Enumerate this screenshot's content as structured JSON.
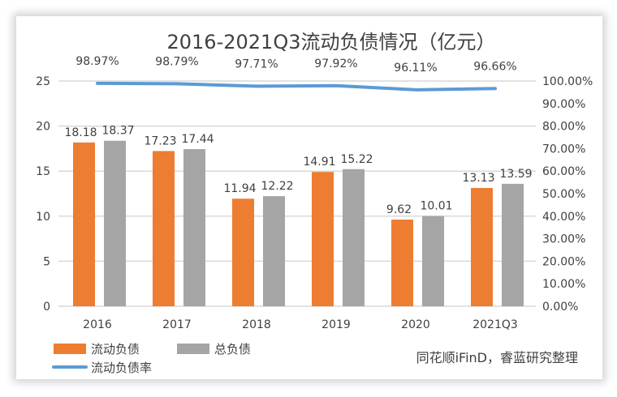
{
  "chart_data": {
    "type": "bar",
    "title": "2016-2021Q3流动负债情况（亿元）",
    "categories": [
      "2016",
      "2017",
      "2018",
      "2019",
      "2020",
      "2021Q3"
    ],
    "series": [
      {
        "name": "流动负债",
        "type": "bar",
        "axis": "left",
        "color": "#ed7d31",
        "values": [
          18.18,
          17.23,
          11.94,
          14.91,
          9.62,
          13.13
        ],
        "labels": [
          "18.18",
          "17.23",
          "11.94",
          "14.91",
          "9.62",
          "13.13"
        ]
      },
      {
        "name": "总负债",
        "type": "bar",
        "axis": "left",
        "color": "#a5a5a5",
        "values": [
          18.37,
          17.44,
          12.22,
          15.22,
          10.01,
          13.59
        ],
        "labels": [
          "18.37",
          "17.44",
          "12.22",
          "15.22",
          "10.01",
          "13.59"
        ]
      },
      {
        "name": "流动负债率",
        "type": "line",
        "axis": "right",
        "color": "#5b9bd5",
        "values": [
          98.97,
          98.79,
          97.71,
          97.92,
          96.11,
          96.66
        ],
        "labels": [
          "98.97%",
          "98.79%",
          "97.71%",
          "97.92%",
          "96.11%",
          "96.66%"
        ]
      }
    ],
    "ylim": [
      0,
      25
    ],
    "y_ticks": [
      "0",
      "5",
      "10",
      "15",
      "20",
      "25"
    ],
    "y2lim": [
      0,
      100
    ],
    "y2_ticks": [
      "0.00%",
      "10.00%",
      "20.00%",
      "30.00%",
      "40.00%",
      "50.00%",
      "60.00%",
      "70.00%",
      "80.00%",
      "90.00%",
      "100.00%"
    ],
    "grid": true,
    "legend_position": "bottom-left",
    "source_note": "同花顺iFinD，睿蓝研究整理"
  }
}
